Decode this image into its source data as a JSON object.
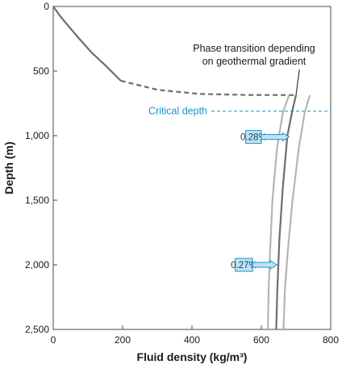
{
  "chart_data": {
    "type": "line",
    "xlabel": "Fluid density (kg/m³)",
    "ylabel": "Depth (m)",
    "xlim": [
      0,
      800
    ],
    "ylim": [
      0,
      2500
    ],
    "y_inverted": true,
    "x_ticks": [
      {
        "value": 0,
        "label": "0"
      },
      {
        "value": 200,
        "label": "200"
      },
      {
        "value": 400,
        "label": "400"
      },
      {
        "value": 600,
        "label": "600"
      },
      {
        "value": 800,
        "label": "800"
      }
    ],
    "y_ticks": [
      {
        "value": 0,
        "label": "0"
      },
      {
        "value": 500,
        "label": "500"
      },
      {
        "value": 1000,
        "label": "1,000"
      },
      {
        "value": 1500,
        "label": "1,500"
      },
      {
        "value": 2000,
        "label": "2,000"
      },
      {
        "value": 2500,
        "label": "2,500"
      }
    ],
    "grid": false,
    "colors": {
      "main_line": "#6d6d6d",
      "side_lines": "#b5b5b5",
      "critical": "#1a94c8",
      "callout_fill": "#bfe3f2",
      "callout_stroke": "#1a94c8"
    },
    "series": [
      {
        "role": "shallow-trend",
        "style": "solid",
        "points": [
          [
            0,
            0
          ],
          [
            20,
            75
          ],
          [
            45,
            155
          ],
          [
            75,
            250
          ],
          [
            110,
            355
          ],
          [
            150,
            455
          ],
          [
            195,
            575
          ]
        ]
      },
      {
        "role": "transition",
        "style": "dashed",
        "points": [
          [
            195,
            575
          ],
          [
            300,
            645
          ],
          [
            420,
            677
          ],
          [
            560,
            685
          ],
          [
            695,
            686
          ]
        ]
      },
      {
        "role": "central-path",
        "style": "solid",
        "points": [
          [
            700,
            686
          ],
          [
            690,
            800
          ],
          [
            675,
            1000
          ],
          [
            662,
            1400
          ],
          [
            652,
            1800
          ],
          [
            646,
            2200
          ],
          [
            643,
            2500
          ]
        ]
      },
      {
        "role": "low-bound",
        "style": "solid",
        "points": [
          [
            680,
            686
          ],
          [
            662,
            820
          ],
          [
            645,
            1100
          ],
          [
            632,
            1500
          ],
          [
            625,
            1900
          ],
          [
            621,
            2200
          ],
          [
            619,
            2500
          ]
        ]
      },
      {
        "role": "high-bound",
        "style": "solid",
        "points": [
          [
            740,
            686
          ],
          [
            725,
            820
          ],
          [
            708,
            1100
          ],
          [
            690,
            1500
          ],
          [
            676,
            1900
          ],
          [
            668,
            2200
          ],
          [
            664,
            2500
          ]
        ]
      }
    ],
    "critical_depth": {
      "value": 810,
      "label": "Critical depth"
    },
    "annotations": {
      "phase_line1": "Phase transition depending",
      "phase_line2": "on geothermal gradient",
      "phase_pointer": {
        "from": [
          710,
          570
        ],
        "to": [
          700,
          686
        ]
      }
    },
    "callouts": [
      {
        "label": "0.28%",
        "box_x": [
          555,
          600
        ],
        "y": 1010,
        "arrow_to": 680
      },
      {
        "label": "0.27%",
        "box_x": [
          525,
          575
        ],
        "y": 2000,
        "arrow_to": 645
      }
    ]
  }
}
